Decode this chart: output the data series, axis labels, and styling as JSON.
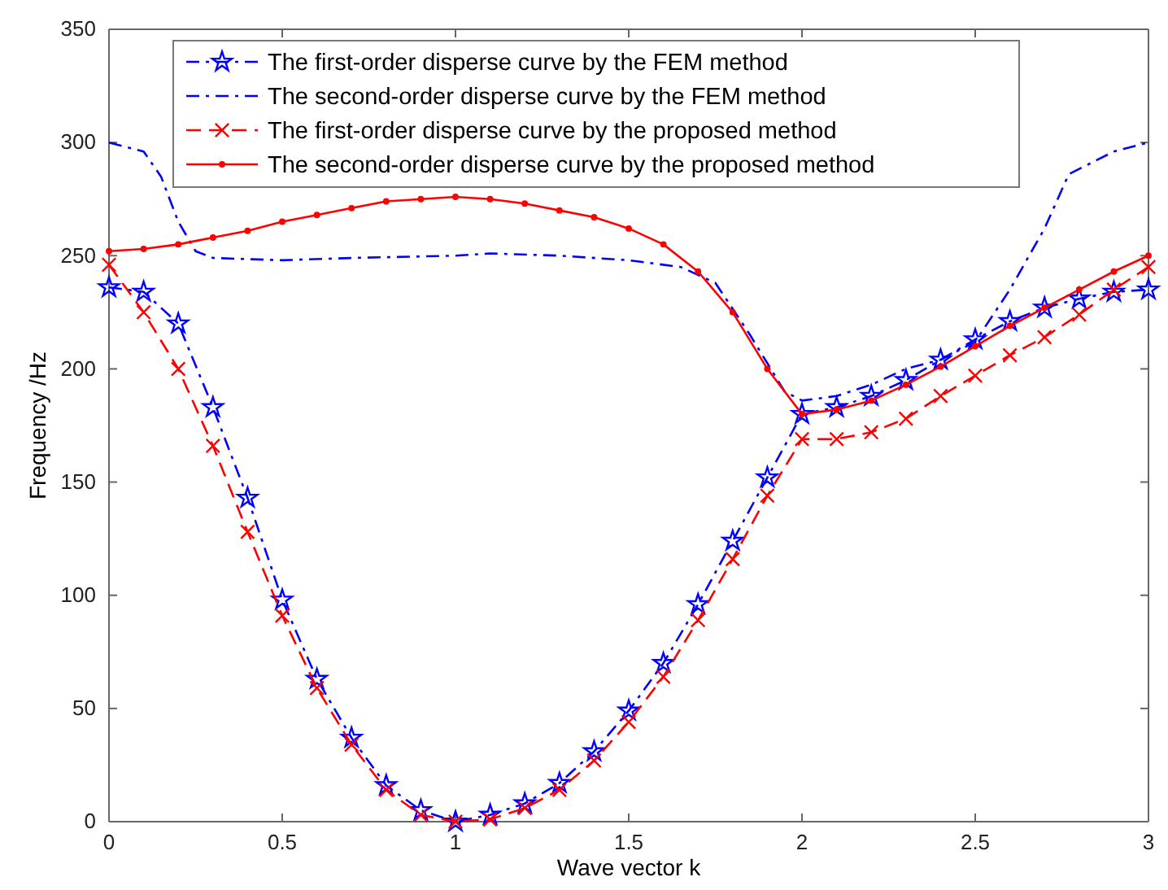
{
  "chart_data": {
    "type": "line",
    "xlabel": "Wave vector  k",
    "ylabel": "Frequency /Hz",
    "xlim": [
      0,
      3
    ],
    "ylim": [
      0,
      350
    ],
    "xticks": [
      0,
      0.5,
      1,
      1.5,
      2,
      2.5,
      3
    ],
    "yticks": [
      0,
      50,
      100,
      150,
      200,
      250,
      300,
      350
    ],
    "legend": "top",
    "grid": false,
    "x": [
      0,
      0.1,
      0.2,
      0.3,
      0.4,
      0.5,
      0.6,
      0.7,
      0.8,
      0.9,
      1,
      1.1,
      1.2,
      1.3,
      1.4,
      1.5,
      1.6,
      1.7,
      1.8,
      1.9,
      2,
      2.1,
      2.2,
      2.3,
      2.4,
      2.5,
      2.6,
      2.7,
      2.8,
      2.9,
      3
    ],
    "series": [
      {
        "name": "The first-order disperse curve by the FEM method",
        "color": "#0000ff",
        "marker": "star",
        "line_style": "dashdot",
        "values": [
          236,
          234,
          220,
          183,
          143,
          98,
          63,
          37,
          16,
          5,
          0,
          3,
          8,
          17,
          31,
          49,
          70,
          96,
          124,
          152,
          180,
          183,
          188,
          195,
          204,
          213,
          221,
          227,
          231,
          234,
          235
        ]
      },
      {
        "name": "The second-order disperse curve by the FEM method",
        "color": "#0000ff",
        "marker": "none",
        "line_style": "dashdot",
        "x": [
          0,
          0.1,
          0.15,
          0.2,
          0.25,
          0.3,
          0.5,
          0.7,
          1,
          1.1,
          1.3,
          1.5,
          1.65,
          1.75,
          1.85,
          1.95,
          2,
          2.1,
          2.2,
          2.3,
          2.4,
          2.5,
          2.6,
          2.7,
          2.77,
          2.9,
          3
        ],
        "values": [
          300,
          296,
          285,
          265,
          252,
          249,
          248,
          249,
          250,
          251,
          250,
          248,
          245,
          238,
          215,
          190,
          186,
          188,
          193,
          200,
          204,
          212,
          235,
          262,
          286,
          296,
          300
        ]
      },
      {
        "name": "The first-order disperse curve by the proposed method",
        "color": "#ff0000",
        "marker": "cross",
        "line_style": "dashed",
        "values": [
          246,
          225,
          200,
          166,
          128,
          91,
          59,
          34,
          14,
          3,
          0,
          1,
          6,
          14,
          27,
          44,
          64,
          89,
          116,
          144,
          169,
          169,
          172,
          178,
          188,
          197,
          206,
          214,
          224,
          235,
          245
        ]
      },
      {
        "name": "The second-order disperse curve by the proposed method",
        "color": "#ff0000",
        "marker": "circle",
        "line_style": "solid",
        "values": [
          252,
          253,
          255,
          258,
          261,
          265,
          268,
          271,
          274,
          275,
          276,
          275,
          273,
          270,
          267,
          262,
          255,
          243,
          225,
          200,
          180,
          182,
          186,
          193,
          201,
          210,
          219,
          227,
          235,
          243,
          250
        ]
      }
    ]
  }
}
